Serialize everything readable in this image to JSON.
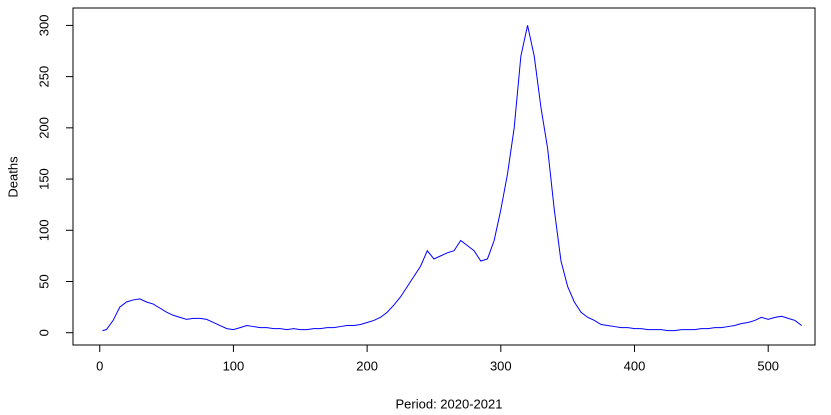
{
  "chart_data": {
    "type": "line",
    "x_label": "Period: 2020-2021",
    "y_label": "Deaths",
    "x": [
      2,
      5,
      10,
      15,
      20,
      25,
      30,
      35,
      40,
      45,
      50,
      55,
      60,
      65,
      70,
      75,
      80,
      85,
      90,
      95,
      100,
      105,
      110,
      115,
      120,
      125,
      130,
      135,
      140,
      145,
      150,
      155,
      160,
      165,
      170,
      175,
      180,
      185,
      190,
      195,
      200,
      205,
      210,
      215,
      220,
      225,
      230,
      235,
      240,
      245,
      250,
      255,
      260,
      265,
      270,
      275,
      280,
      285,
      290,
      295,
      300,
      305,
      310,
      315,
      320,
      325,
      330,
      335,
      340,
      345,
      350,
      355,
      360,
      365,
      370,
      375,
      380,
      385,
      390,
      395,
      400,
      405,
      410,
      415,
      420,
      425,
      430,
      435,
      440,
      445,
      450,
      455,
      460,
      465,
      470,
      475,
      480,
      485,
      490,
      495,
      500,
      505,
      510,
      515,
      520,
      525
    ],
    "series": [
      {
        "color": "#0000ff",
        "values": [
          2,
          3,
          12,
          25,
          30,
          32,
          33,
          30,
          28,
          24,
          20,
          17,
          15,
          13,
          14,
          14,
          13,
          10,
          7,
          4,
          3,
          5,
          7,
          6,
          5,
          5,
          4,
          4,
          3,
          4,
          3,
          3,
          4,
          4,
          5,
          5,
          6,
          7,
          7,
          8,
          10,
          12,
          15,
          20,
          27,
          35,
          45,
          55,
          65,
          80,
          72,
          75,
          78,
          80,
          90,
          85,
          80,
          70,
          72,
          90,
          120,
          155,
          200,
          270,
          300,
          270,
          220,
          180,
          120,
          70,
          45,
          30,
          20,
          15,
          12,
          8,
          7,
          6,
          5,
          5,
          4,
          4,
          3,
          3,
          3,
          2,
          2,
          3,
          3,
          3,
          4,
          4,
          5,
          5,
          6,
          7,
          9,
          10,
          12,
          15,
          13,
          15,
          16,
          14,
          12,
          7
        ]
      }
    ],
    "xlim": [
      -20,
      535
    ],
    "ylim": [
      -12,
      317
    ],
    "xticks": [
      0,
      100,
      200,
      300,
      400,
      500
    ],
    "yticks": [
      0,
      50,
      100,
      150,
      200,
      250,
      300
    ]
  }
}
